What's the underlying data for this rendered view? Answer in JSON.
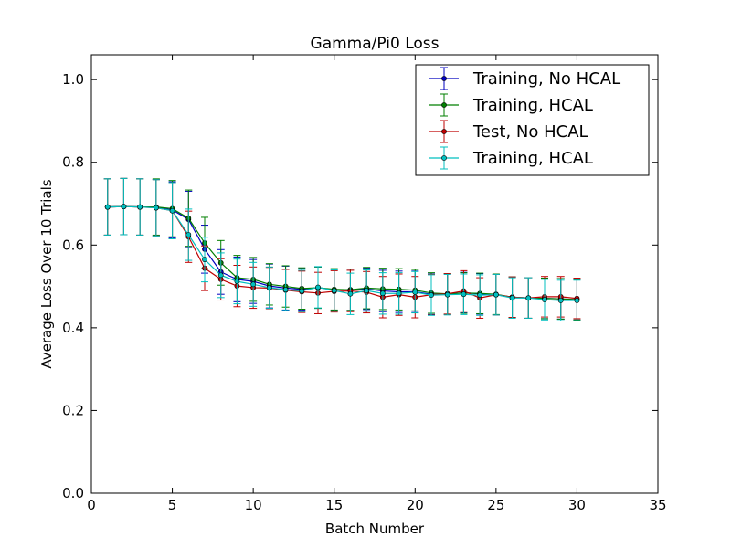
{
  "chart_data": {
    "type": "line",
    "title": "Gamma/Pi0 Loss",
    "xlabel": "Batch Number",
    "ylabel": "Average Loss Over 10 Trials",
    "xlim": [
      0,
      35
    ],
    "ylim": [
      0.0,
      1.06
    ],
    "xticks": [
      0,
      5,
      10,
      15,
      20,
      25,
      30,
      35
    ],
    "yticks": [
      0.0,
      0.2,
      0.4,
      0.6,
      0.8,
      1.0
    ],
    "x_tick_labels": [
      "0",
      "5",
      "10",
      "15",
      "20",
      "25",
      "30",
      "35"
    ],
    "y_tick_labels": [
      "0.0",
      "0.2",
      "0.4",
      "0.6",
      "0.8",
      "1.0"
    ],
    "legend_position": "top-right",
    "x": [
      1,
      2,
      3,
      4,
      5,
      6,
      7,
      8,
      9,
      10,
      11,
      12,
      13,
      14,
      15,
      16,
      17,
      18,
      19,
      20,
      21,
      22,
      23,
      24,
      25,
      26,
      27,
      28,
      29,
      30
    ],
    "series": [
      {
        "name": "Training, No HCAL",
        "color": "#0000bf",
        "values": [
          0.692,
          0.693,
          0.692,
          0.691,
          0.685,
          0.662,
          0.59,
          0.535,
          0.517,
          0.512,
          0.501,
          0.496,
          0.493,
          0.497,
          0.492,
          0.492,
          0.494,
          0.489,
          0.487,
          0.487,
          0.481,
          0.481,
          0.485,
          0.482,
          0.48,
          0.474,
          0.472,
          0.471,
          0.47,
          0.468
        ],
        "errors": [
          0.068,
          0.068,
          0.068,
          0.068,
          0.068,
          0.068,
          0.058,
          0.054,
          0.054,
          0.053,
          0.053,
          0.053,
          0.05,
          0.05,
          0.05,
          0.05,
          0.05,
          0.05,
          0.05,
          0.05,
          0.049,
          0.049,
          0.049,
          0.049,
          0.049,
          0.049,
          0.049,
          0.049,
          0.049,
          0.049
        ]
      },
      {
        "name": "Training, HCAL",
        "color": "#007f00",
        "values": [
          0.692,
          0.693,
          0.692,
          0.692,
          0.688,
          0.665,
          0.605,
          0.557,
          0.521,
          0.517,
          0.505,
          0.5,
          0.495,
          0.497,
          0.493,
          0.492,
          0.496,
          0.494,
          0.493,
          0.491,
          0.484,
          0.482,
          0.484,
          0.483,
          0.481,
          0.474,
          0.472,
          0.471,
          0.47,
          0.468
        ],
        "errors": [
          0.068,
          0.068,
          0.068,
          0.068,
          0.068,
          0.068,
          0.062,
          0.054,
          0.054,
          0.053,
          0.05,
          0.05,
          0.05,
          0.05,
          0.05,
          0.05,
          0.05,
          0.05,
          0.05,
          0.05,
          0.049,
          0.049,
          0.049,
          0.049,
          0.049,
          0.049,
          0.049,
          0.049,
          0.049,
          0.049
        ]
      },
      {
        "name": "Test, No HCAL",
        "color": "#bf0000",
        "values": [
          0.692,
          0.693,
          0.692,
          0.69,
          0.683,
          0.62,
          0.544,
          0.517,
          0.501,
          0.497,
          0.496,
          0.491,
          0.487,
          0.484,
          0.488,
          0.489,
          0.486,
          0.474,
          0.48,
          0.474,
          0.48,
          0.482,
          0.489,
          0.472,
          0.48,
          0.474,
          0.472,
          0.475,
          0.475,
          0.471
        ],
        "errors": [
          0.068,
          0.068,
          0.068,
          0.068,
          0.068,
          0.062,
          0.054,
          0.05,
          0.05,
          0.05,
          0.05,
          0.05,
          0.05,
          0.05,
          0.05,
          0.05,
          0.05,
          0.05,
          0.05,
          0.05,
          0.049,
          0.049,
          0.049,
          0.049,
          0.049,
          0.049,
          0.049,
          0.049,
          0.049,
          0.049
        ]
      },
      {
        "name": "Training, HCAL",
        "color": "#00bfbf",
        "values": [
          0.692,
          0.693,
          0.692,
          0.69,
          0.683,
          0.625,
          0.565,
          0.527,
          0.512,
          0.505,
          0.497,
          0.492,
          0.489,
          0.498,
          0.49,
          0.482,
          0.49,
          0.483,
          0.483,
          0.486,
          0.479,
          0.48,
          0.481,
          0.479,
          0.48,
          0.472,
          0.472,
          0.468,
          0.466,
          0.466
        ],
        "errors": [
          0.068,
          0.068,
          0.068,
          0.068,
          0.068,
          0.062,
          0.054,
          0.054,
          0.054,
          0.053,
          0.05,
          0.05,
          0.05,
          0.05,
          0.05,
          0.05,
          0.05,
          0.05,
          0.05,
          0.05,
          0.049,
          0.049,
          0.049,
          0.049,
          0.049,
          0.049,
          0.049,
          0.049,
          0.049,
          0.049
        ]
      }
    ]
  }
}
